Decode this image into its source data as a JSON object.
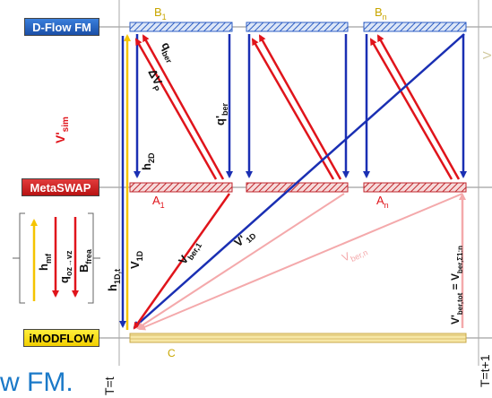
{
  "layers": {
    "dflow": "D-Flow FM",
    "metaswap": "MetaSWAP",
    "imodflow": "iMODFLOW"
  },
  "segments": {
    "b1": "B",
    "b1_sub": "1",
    "bn": "B",
    "bn_sub": "n",
    "a1": "A",
    "a1_sub": "1",
    "an": "A",
    "an_sub": "n",
    "c": "C"
  },
  "labels": {
    "v_sim": "V'",
    "v_sim_sub": "sim",
    "q_ber": "q",
    "q_ber_sub": "ber",
    "delta_vp": "ΔV",
    "delta_vp_sub": "P",
    "qprime_ber": "q'",
    "qprime_ber_sub": "ber",
    "h2d": "h",
    "h2d_sub": "2D",
    "h1dt": "h",
    "h1dt_sub": "1D,t",
    "v1d": "V",
    "v1d_sub": "1D",
    "vber1": "V",
    "vber1_sub": "ber,1",
    "vprime1d": "V'",
    "vprime1d_sub": "1D",
    "vbern": "V",
    "vbern_sub": "ber,n",
    "vbertot": "V'",
    "vbertot_sub": "ber,tot",
    "vbertot_eq": " = V",
    "vbertot_eq_sub": "ber,Σ1:n",
    "right_top": "V",
    "t_start": "T=t",
    "t_end": "T=t+1",
    "bottom_text": "w FM."
  },
  "legend": {
    "hmf": "h",
    "hmf_sub": "mf",
    "qoz": "q",
    "qoz_sub": "oz→vz",
    "bfrea": "B",
    "bfrea_sub": "frea"
  },
  "colors": {
    "blue": "#1a2fb3",
    "red": "#e0141b",
    "pink": "#f4a9ab",
    "yellow": "#f5c400",
    "hatch_blue": "#2f5fc4",
    "hatch_red": "#c0262c"
  }
}
